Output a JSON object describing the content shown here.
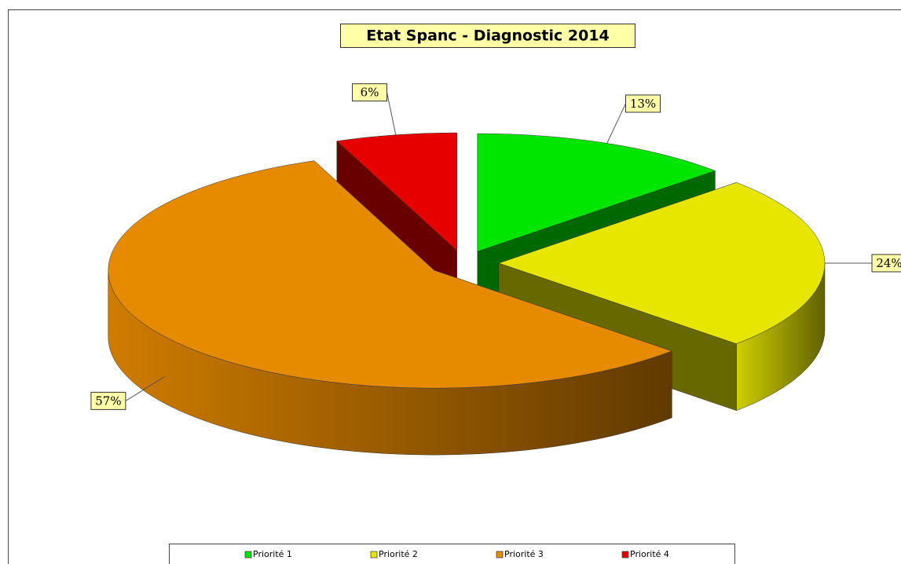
{
  "chart_data": {
    "type": "pie",
    "title": "Etat Spanc - Diagnostic 2014",
    "categories": [
      "Priorité 1",
      "Priorité 2",
      "Priorité 3",
      "Priorité 4"
    ],
    "values": [
      13,
      24,
      57,
      6
    ],
    "value_labels": [
      "13%",
      "24%",
      "57%",
      "6%"
    ],
    "colors": [
      "#00e600",
      "#e6e600",
      "#e68a00",
      "#e60000"
    ],
    "legend": "bottom"
  }
}
